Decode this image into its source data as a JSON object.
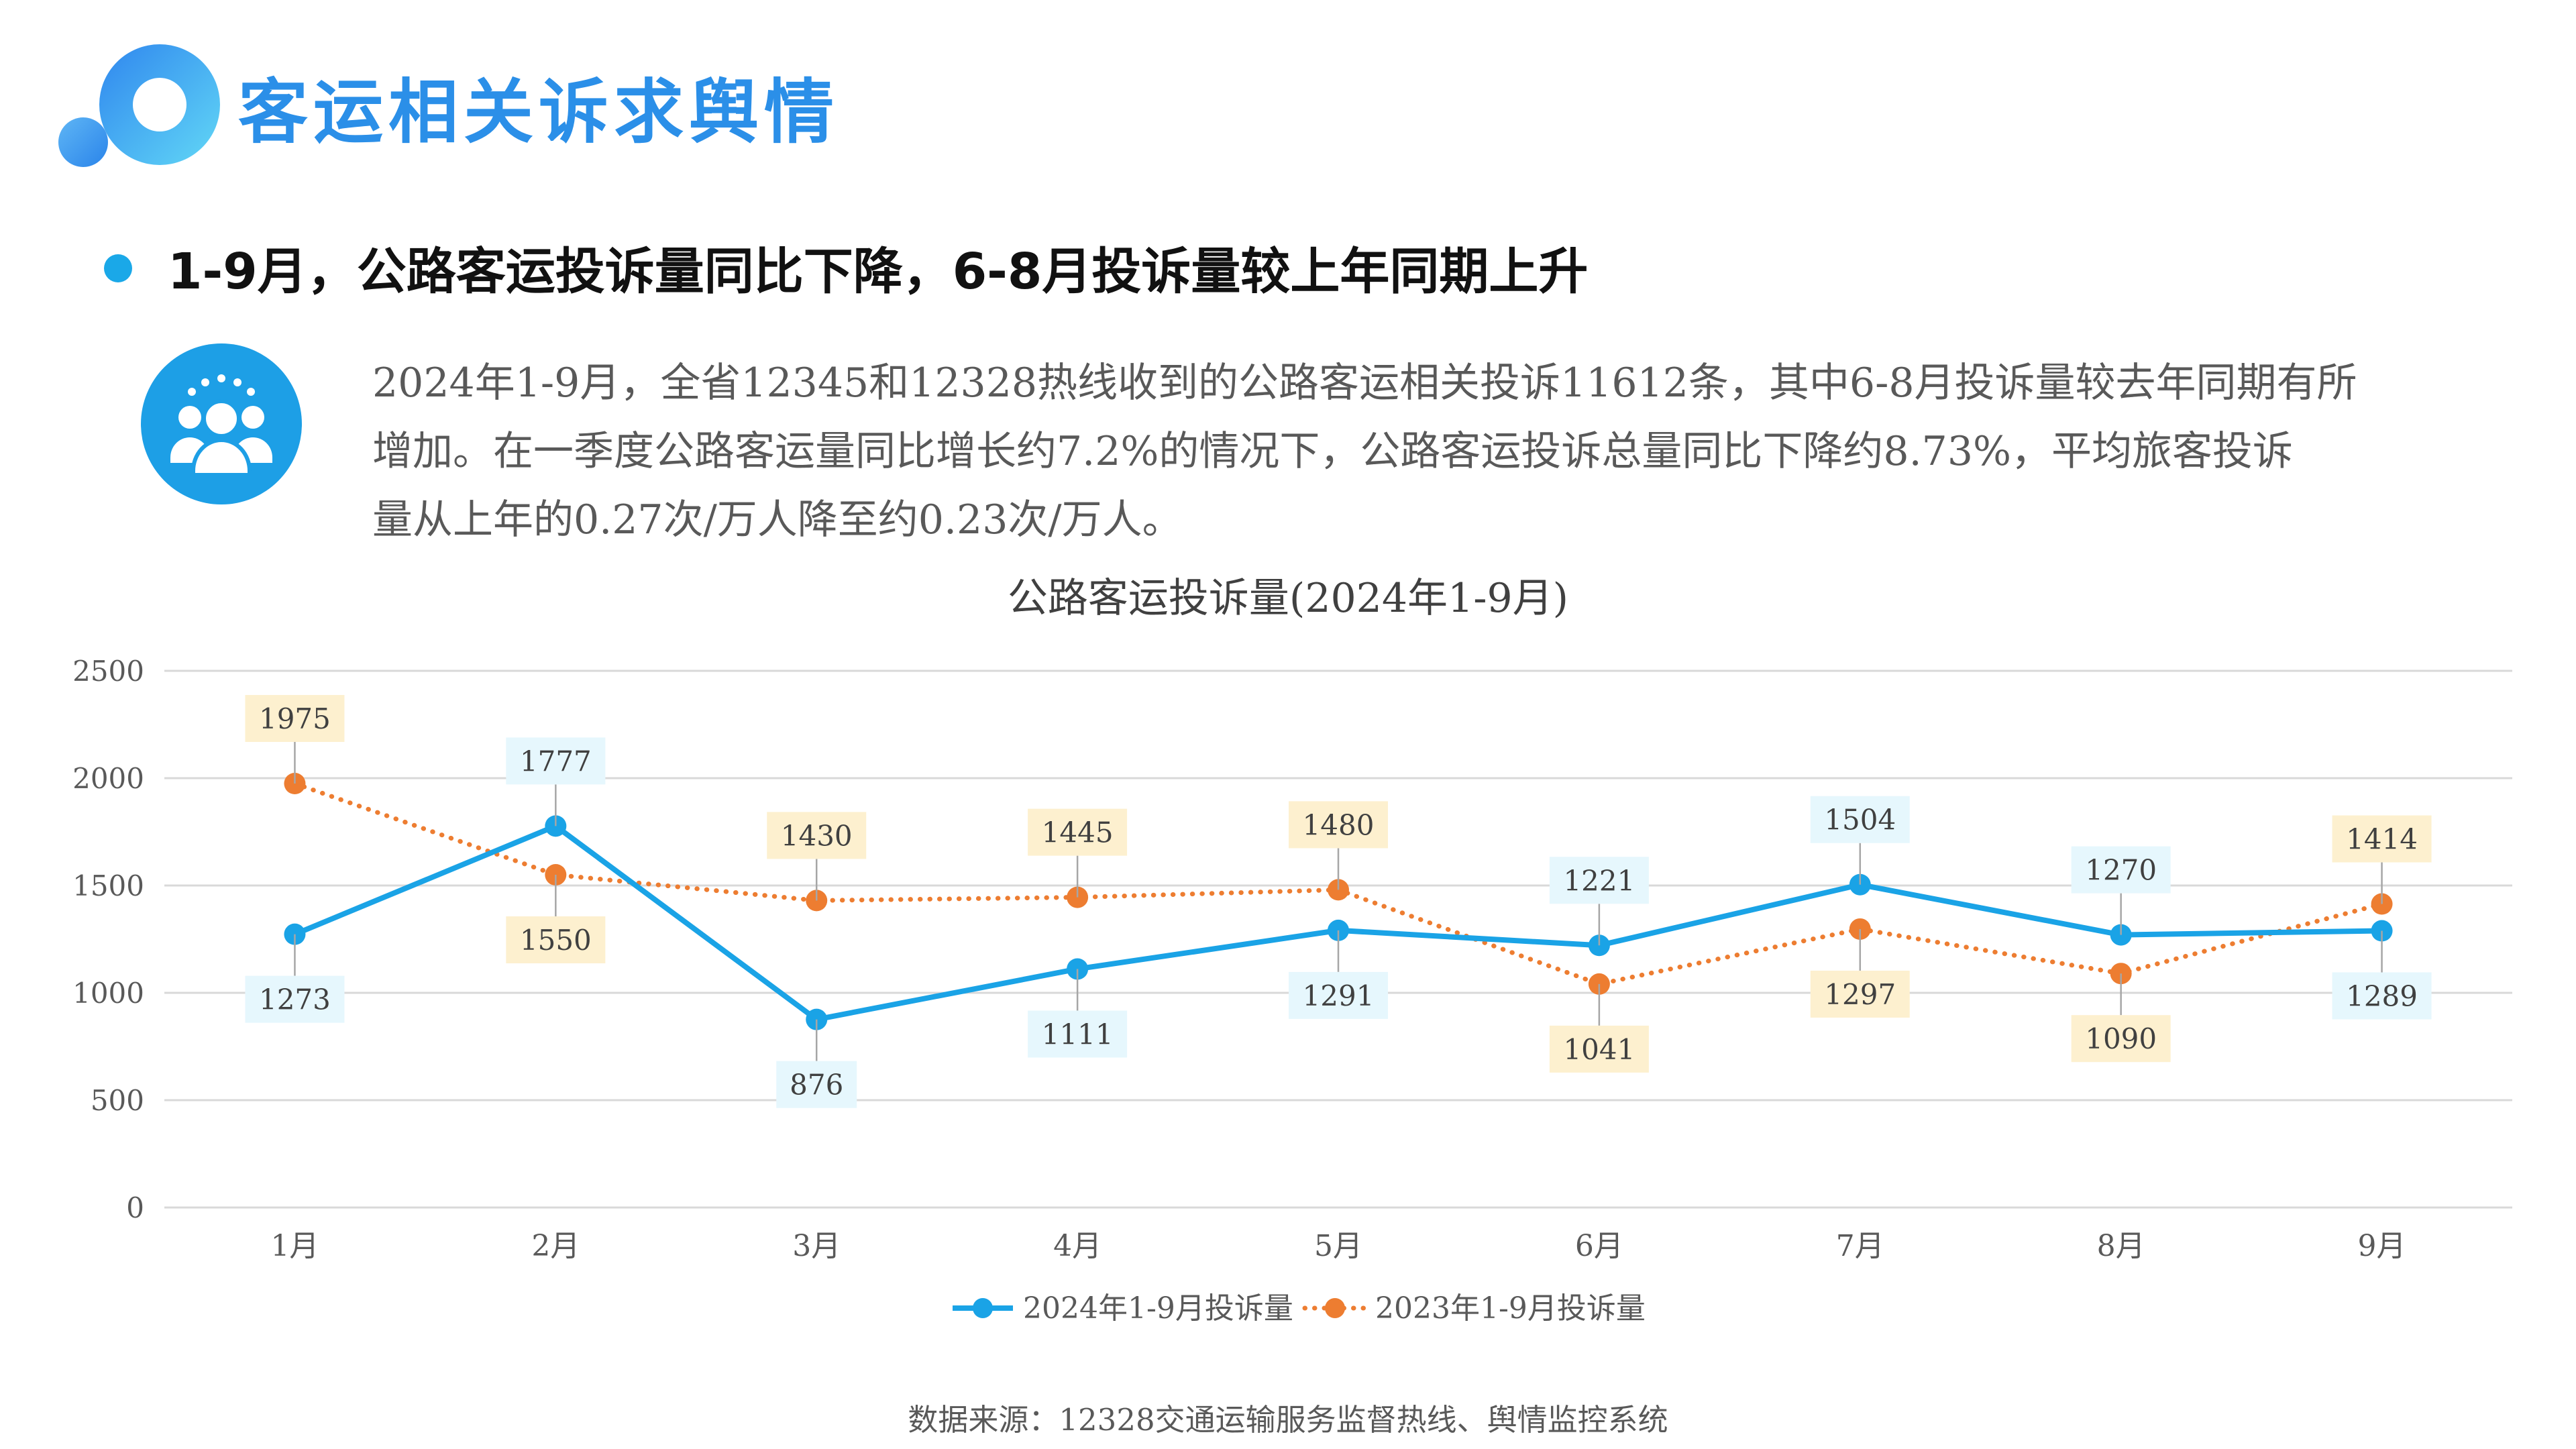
{
  "header": {
    "title": "客运相关诉求舆情"
  },
  "headline": {
    "text": "1-9月，公路客运投诉量同比下降，6-8月投诉量较上年同期上升"
  },
  "summary": {
    "lines": [
      "2024年1-9月，全省12345和12328热线收到的公路客运相关投诉11612条，其中6-8月投诉量较去年同期有所",
      "增加。在一季度公路客运量同比增长约7.2%的情况下，公路客运投诉总量同比下降约8.73%，平均旅客投诉",
      "量从上年的0.27次/万人降至约0.23次/万人。"
    ]
  },
  "chart_data": {
    "type": "line",
    "title": "公路客运投诉量(2024年1-9月)",
    "categories": [
      "1月",
      "2月",
      "3月",
      "4月",
      "5月",
      "6月",
      "7月",
      "8月",
      "9月"
    ],
    "series": [
      {
        "name": "2024年1-9月投诉量",
        "values": [
          1273,
          1777,
          876,
          1111,
          1291,
          1221,
          1504,
          1270,
          1289
        ],
        "color": "#1aa3e6",
        "style": "solid"
      },
      {
        "name": "2023年1-9月投诉量",
        "values": [
          1975,
          1550,
          1430,
          1445,
          1480,
          1041,
          1297,
          1090,
          1414
        ],
        "color": "#ed7d31",
        "style": "dotted"
      }
    ],
    "ylim": [
      0,
      2500
    ],
    "yticks": [
      0,
      500,
      1000,
      1500,
      2000,
      2500
    ],
    "grid": true,
    "legend": "bottom"
  },
  "footer": {
    "source": "数据来源：12328交通运输服务监督热线、舆情监控系统"
  },
  "colors": {
    "accent": "#2b8fe8",
    "label_bg_2024": "#e6f7fd",
    "label_bg_2023": "#fdf0cf"
  }
}
